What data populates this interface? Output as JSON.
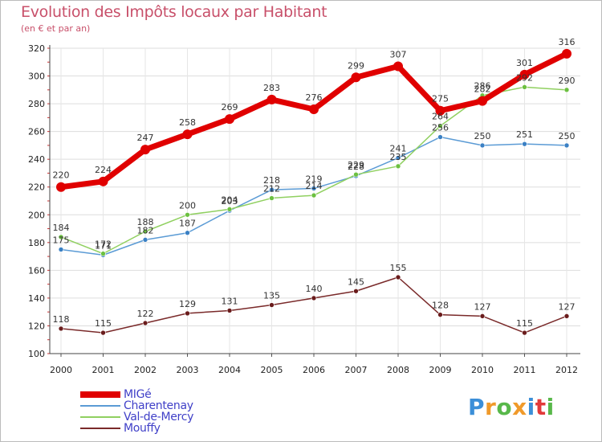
{
  "title": "Evolution des Impôts locaux par Habitant",
  "subtitle": "(en € et par an)",
  "brand": {
    "letters": [
      "P",
      "r",
      "o",
      "x",
      "i",
      "t",
      "i"
    ],
    "colors": [
      "#3c8fd8",
      "#f09a2a",
      "#58b84a",
      "#f09a2a",
      "#3c8fd8",
      "#e23a3a",
      "#58b84a"
    ]
  },
  "chart_data": {
    "type": "line",
    "title": "Evolution des Impôts locaux par Habitant",
    "subtitle": "(en € et par an)",
    "x": [
      "2000",
      "2001",
      "2002",
      "2003",
      "2004",
      "2005",
      "2006",
      "2007",
      "2008",
      "2009",
      "2010",
      "2011",
      "2012"
    ],
    "ylim": [
      100,
      320
    ],
    "yticks": [
      "100",
      "120",
      "140",
      "160",
      "180",
      "200",
      "220",
      "240",
      "260",
      "280",
      "300",
      "320"
    ],
    "grid": true,
    "legend_position": "bottom-left",
    "series": [
      {
        "name": "Charentenay",
        "color": "#5b9bd5",
        "dot": "#3a80c4",
        "bold": false,
        "values": [
          175,
          171,
          182,
          187,
          203,
          218,
          219,
          228,
          241,
          256,
          250,
          251,
          250
        ],
        "labels": [
          "175",
          "171",
          "182",
          "187",
          "203",
          "218",
          "219",
          "228",
          "241",
          "256",
          "250",
          "251",
          "250"
        ]
      },
      {
        "name": "Val-de-Mercy",
        "color": "#90d060",
        "dot": "#6cc040",
        "bold": false,
        "values": [
          184,
          172,
          188,
          200,
          204,
          212,
          214,
          229,
          235,
          264,
          286,
          292,
          290
        ],
        "labels": [
          "184",
          "172",
          "188",
          "200",
          "204",
          "212",
          "214",
          "229",
          "235",
          "264",
          "286",
          "292",
          "290"
        ]
      },
      {
        "name": "Mouffy",
        "color": "#7a2a2a",
        "dot": "#6a1c1c",
        "bold": false,
        "values": [
          118,
          115,
          122,
          129,
          131,
          135,
          140,
          145,
          155,
          128,
          127,
          115,
          127
        ],
        "labels": [
          "118",
          "115",
          "122",
          "129",
          "131",
          "135",
          "140",
          "145",
          "155",
          "128",
          "127",
          "115",
          "127"
        ]
      },
      {
        "name": "MIGé",
        "color": "#e00000",
        "dot": "#e00000",
        "bold": true,
        "values": [
          220,
          224,
          247,
          258,
          269,
          283,
          276,
          299,
          307,
          275,
          282,
          301,
          316
        ],
        "labels": [
          "220",
          "224",
          "247",
          "258",
          "269",
          "283",
          "276",
          "299",
          "307",
          "275",
          "282",
          "301",
          "316"
        ]
      }
    ],
    "legend_order": [
      "MIGé",
      "Charentenay",
      "Val-de-Mercy",
      "Mouffy"
    ]
  }
}
